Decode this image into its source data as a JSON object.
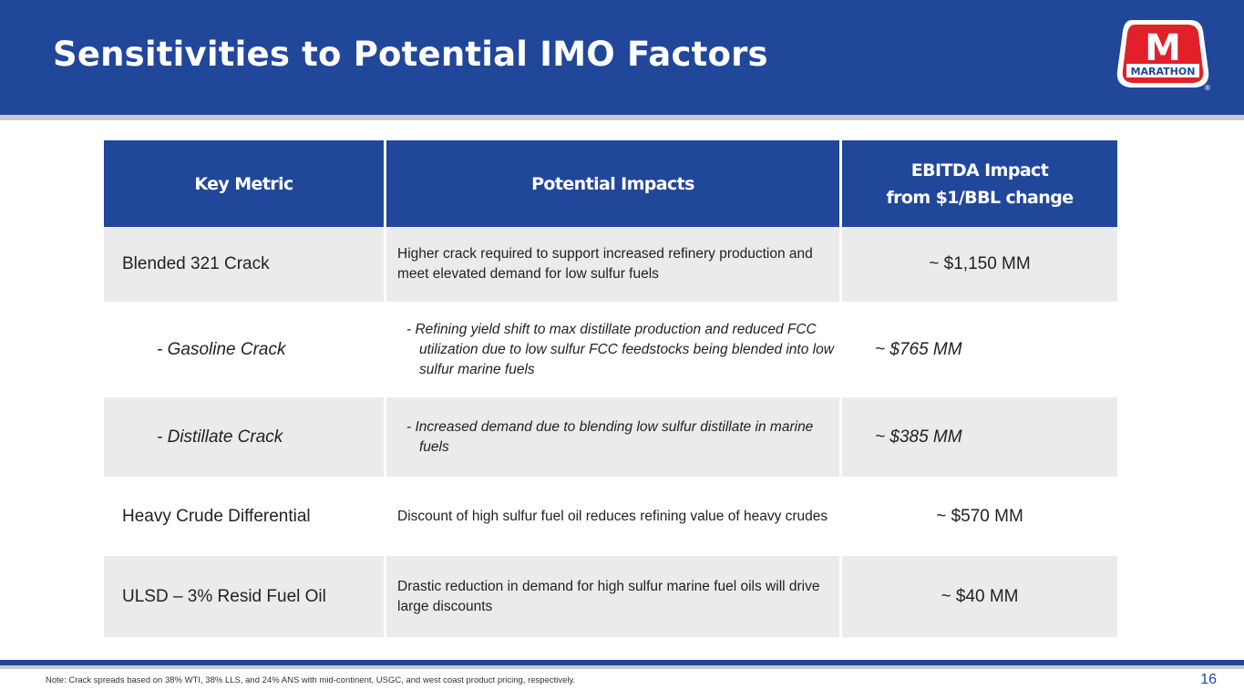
{
  "header": {
    "title": "Sensitivities to Potential IMO Factors"
  },
  "logo": {
    "text": "MARATHON",
    "letter": "M",
    "registered": "®",
    "colors": {
      "red": "#e2202a",
      "blue": "#21479b"
    }
  },
  "table": {
    "headers": {
      "metric": "Key Metric",
      "impacts": "Potential Impacts",
      "ebitda_line1": "EBITDA Impact",
      "ebitda_line2": "from $1/BBL change"
    },
    "rows": [
      {
        "metric": "Blended 321 Crack",
        "impacts": [
          "Higher crack required to support increased refinery production and meet elevated demand for low sulfur fuels"
        ],
        "ebitda": "~ $1,150 MM"
      },
      {
        "metric": "- Gasoline Crack",
        "impacts": [
          "- Refining yield shift to max distillate production and reduced FCC utilization due to low sulfur FCC feedstocks being blended into low sulfur marine fuels"
        ],
        "ebitda": "~ $765 MM"
      },
      {
        "metric": "- Distillate Crack",
        "impacts": [
          "- Increased demand due to blending low sulfur distillate in marine fuels"
        ],
        "ebitda": "~ $385 MM"
      },
      {
        "metric": "Heavy Crude Differential",
        "impacts": [
          "Discount of high sulfur fuel oil reduces refining value of heavy crudes"
        ],
        "ebitda": "~ $570 MM"
      },
      {
        "metric": "ULSD – 3% Resid Fuel Oil",
        "impacts": [
          "Drastic reduction in demand for high sulfur marine fuel oils will drive large discounts"
        ],
        "ebitda": "~ $40 MM"
      }
    ]
  },
  "footer": {
    "note": "Note: Crack spreads based on 38% WTI, 38% LLS, and 24% ANS with mid-continent, USGC, and west coast product pricing, respectively.",
    "page_number": "16"
  },
  "colors": {
    "brand_blue": "#21479b",
    "row_shade": "#ebebeb",
    "rule_gray": "#c9c9c9"
  }
}
